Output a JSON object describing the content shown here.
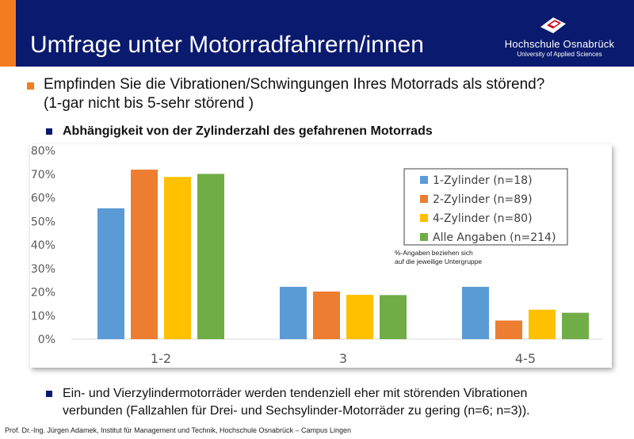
{
  "header": {
    "title": "Umfrage unter Motorradfahrern/innen",
    "logo_name": "Hochschule Osnabrück",
    "logo_sub": "University of Applied Sciences",
    "bg_color": "#0a1a6e",
    "accent_color": "#f47c20"
  },
  "question": {
    "line1": "Empfinden Sie die Vibrationen/Schwingungen Ihres Motorrads als störend?",
    "line2": "(1-gar nicht bis 5-sehr störend )"
  },
  "subheading": "Abhängigkeit von der Zylinderzahl des gefahrenen Motorrads",
  "chart_data": {
    "type": "bar",
    "categories": [
      "1-2",
      "3",
      "4-5"
    ],
    "series": [
      {
        "name": "1-Zylinder (n=18)",
        "color": "#5b9bd5",
        "values": [
          55.5,
          22.2,
          22.2
        ]
      },
      {
        "name": "2-Zylinder (n=89)",
        "color": "#ed7d31",
        "values": [
          71.9,
          20.2,
          7.9
        ]
      },
      {
        "name": "4-Zylinder (n=80)",
        "color": "#ffc000",
        "values": [
          68.8,
          18.8,
          12.5
        ]
      },
      {
        "name": "Alle Angaben (n=214)",
        "color": "#70ad47",
        "values": [
          70.1,
          18.7,
          11.2
        ]
      }
    ],
    "ylim": [
      0,
      80
    ],
    "yticks": [
      "0%",
      "10%",
      "20%",
      "30%",
      "40%",
      "50%",
      "60%",
      "70%",
      "80%"
    ],
    "grid": false,
    "legend_position": "top-right",
    "annotation_line1": "%-Angaben beziehen sich",
    "annotation_line2": "auf die jeweilige Untergruppe"
  },
  "conclusion": {
    "line1": "Ein- und Vierzylindermotorräder werden tendenziell eher mit störenden Vibrationen",
    "line2": "verbunden (Fallzahlen für Drei- und Sechsylinder-Motorräder zu gering (n=6; n=3))."
  },
  "footer": "Prof. Dr.-Ing. Jürgen Adamek, Institut für Management und Technik, Hochschule Osnabrück – Campus Lingen"
}
